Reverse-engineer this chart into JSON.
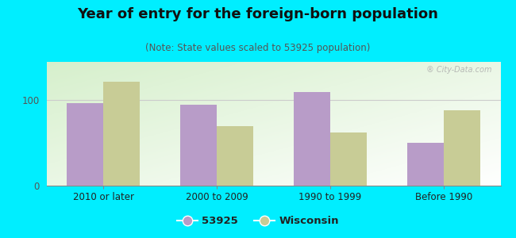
{
  "title": "Year of entry for the foreign-born population",
  "subtitle": "(Note: State values scaled to 53925 population)",
  "categories": [
    "2010 or later",
    "2000 to 2009",
    "1990 to 1999",
    "Before 1990"
  ],
  "values_53925": [
    97,
    95,
    110,
    50
  ],
  "values_wisconsin": [
    122,
    70,
    62,
    88
  ],
  "color_53925": "#b89cc8",
  "color_wisconsin": "#c8cc96",
  "background_color": "#00eeff",
  "ylim": [
    0,
    145
  ],
  "yticks": [
    0,
    100
  ],
  "legend_label_53925": "53925",
  "legend_label_wisconsin": "Wisconsin",
  "bar_width": 0.32,
  "title_fontsize": 13,
  "subtitle_fontsize": 8.5,
  "watermark": "City-Data.com"
}
